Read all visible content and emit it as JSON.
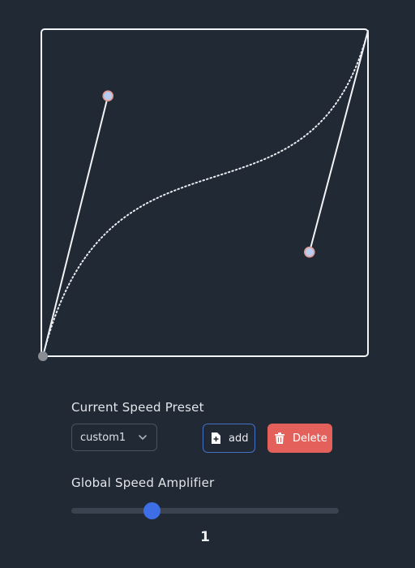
{
  "curve": {
    "type": "cubic-bezier",
    "p1": [
      0.2,
      0.8
    ],
    "p2": [
      0.82,
      0.32
    ],
    "colors": {
      "frame": "#f2f4f7",
      "curve": "#e9ecf0",
      "handle_fill": "#b8cdf0",
      "handle_ring": "#e39a92",
      "origin": "#8a8e94"
    }
  },
  "preset": {
    "label": "Current Speed Preset",
    "selected": "custom1",
    "add_label": "add",
    "delete_label": "Delete"
  },
  "amplifier": {
    "label": "Global Speed Amplifier",
    "value": "1",
    "fraction": 0.3
  },
  "colors": {
    "background": "#212935",
    "accent": "#3e6ee6",
    "danger": "#e4605a"
  }
}
